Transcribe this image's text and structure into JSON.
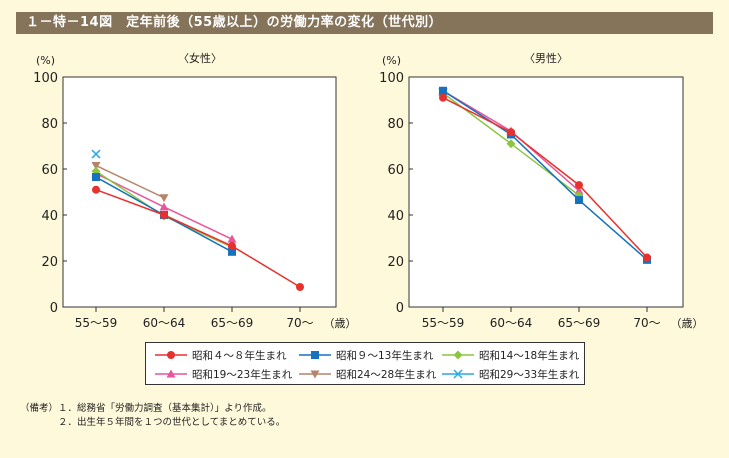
{
  "title": "１－特－14図　定年前後（55歳以上）の労働力率の変化（世代別）",
  "legend": [
    {
      "label": "昭和４～８年生まれ",
      "color": "#e8312d",
      "marker": "circle"
    },
    {
      "label": "昭和９～13年生まれ",
      "color": "#1672bd",
      "marker": "square"
    },
    {
      "label": "昭和14～18年生まれ",
      "color": "#8cc63f",
      "marker": "diamond"
    },
    {
      "label": "昭和19～23年生まれ",
      "color": "#e9559a",
      "marker": "triangle-up"
    },
    {
      "label": "昭和24～28年生まれ",
      "color": "#b5846a",
      "marker": "triangle-down"
    },
    {
      "label": "昭和29～33年生まれ",
      "color": "#29abe2",
      "marker": "x"
    }
  ],
  "notes": [
    "（備考）１．総務省「労働力調査（基本集計）」より作成。",
    "　　　　２．出生年５年間を１つの世代としてまとめている。"
  ],
  "chart_data": [
    {
      "type": "line",
      "title": "〈女性〉",
      "ylabel": "(%)",
      "xlabel": "（歳）",
      "categories": [
        "55～59",
        "60～64",
        "65～69",
        "70～"
      ],
      "yticks": [
        "0",
        "20",
        "40",
        "60",
        "80",
        "100"
      ],
      "ylim": [
        0,
        100
      ],
      "grid": false,
      "series": [
        {
          "name": "昭和４～８年生まれ",
          "values": [
            51,
            40,
            26.5,
            8.7
          ]
        },
        {
          "name": "昭和９～13年生まれ",
          "values": [
            56.5,
            40,
            24,
            null
          ]
        },
        {
          "name": "昭和14～18年生まれ",
          "values": [
            59,
            39.5,
            26,
            null
          ]
        },
        {
          "name": "昭和19～23年生まれ",
          "values": [
            58,
            43.5,
            29.5,
            null
          ]
        },
        {
          "name": "昭和24～28年生まれ",
          "values": [
            61.5,
            47.5,
            null,
            null
          ]
        },
        {
          "name": "昭和29～33年生まれ",
          "values": [
            66.5,
            null,
            null,
            null
          ]
        }
      ]
    },
    {
      "type": "line",
      "title": "〈男性〉",
      "ylabel": "(%)",
      "xlabel": "（歳）",
      "categories": [
        "55～59",
        "60～64",
        "65～69",
        "70～"
      ],
      "yticks": [
        "0",
        "20",
        "40",
        "60",
        "80",
        "100"
      ],
      "ylim": [
        0,
        100
      ],
      "grid": false,
      "series": [
        {
          "name": "昭和４～８年生まれ",
          "values": [
            91,
            76,
            53,
            21.5
          ]
        },
        {
          "name": "昭和９～13年生まれ",
          "values": [
            94,
            75,
            46.5,
            20.5
          ]
        },
        {
          "name": "昭和14～18年生まれ",
          "values": [
            93,
            71,
            48.5,
            null
          ]
        },
        {
          "name": "昭和19～23年生まれ",
          "values": [
            94,
            76.5,
            50.5,
            null
          ]
        },
        {
          "name": "昭和24～28年生まれ",
          "values": [
            93,
            null,
            null,
            null
          ]
        },
        {
          "name": "昭和29～33年生まれ",
          "values": [
            93.5,
            null,
            null,
            null
          ]
        }
      ]
    }
  ]
}
